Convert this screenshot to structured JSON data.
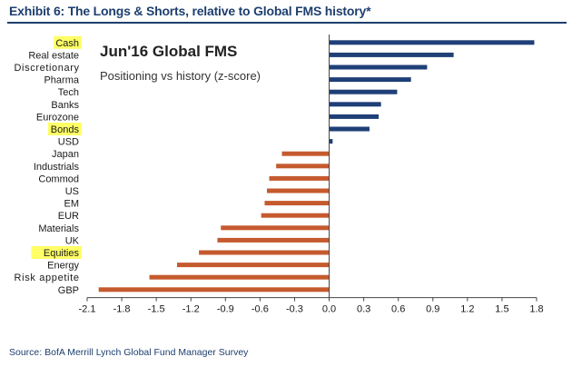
{
  "header": {
    "title": "Exhibit 6: The Longs & Shorts, relative to Global FMS history*"
  },
  "footer": {
    "source": "Source: BofA Merrill Lynch Global Fund Manager Survey"
  },
  "colors": {
    "positive": "#1f3f77",
    "negative": "#c55a2e",
    "highlight": "#ffff66",
    "axis": "#444444",
    "text": "#1a1a1a"
  },
  "chart_data": {
    "type": "bar",
    "orientation": "horizontal",
    "title": "Jun'16 Global FMS",
    "subtitle": "Positioning vs history (z-score)",
    "categories": [
      "Cash",
      "Real estate",
      "Discretionary",
      "Pharma",
      "Tech",
      "Banks",
      "Eurozone",
      "Bonds",
      "USD",
      "Japan",
      "Industrials",
      "Commod",
      "US",
      "EM",
      "EUR",
      "Materials",
      "UK",
      "Equities",
      "Energy",
      "Risk appetite",
      "GBP"
    ],
    "values": [
      1.78,
      1.08,
      0.85,
      0.71,
      0.59,
      0.45,
      0.43,
      0.35,
      0.03,
      -0.41,
      -0.46,
      -0.52,
      -0.54,
      -0.56,
      -0.59,
      -0.94,
      -0.97,
      -1.13,
      -1.32,
      -1.56,
      -2.0
    ],
    "highlighted": [
      "Cash",
      "Bonds",
      "Equities"
    ],
    "xlim": [
      -2.1,
      1.8
    ],
    "xticks": [
      "-2.1",
      "-1.8",
      "-1.5",
      "-1.2",
      "-0.9",
      "-0.6",
      "-0.3",
      "0.0",
      "0.3",
      "0.6",
      "0.9",
      "1.2",
      "1.5",
      "1.8"
    ],
    "xlabel": "",
    "ylabel": "",
    "grid": false
  }
}
